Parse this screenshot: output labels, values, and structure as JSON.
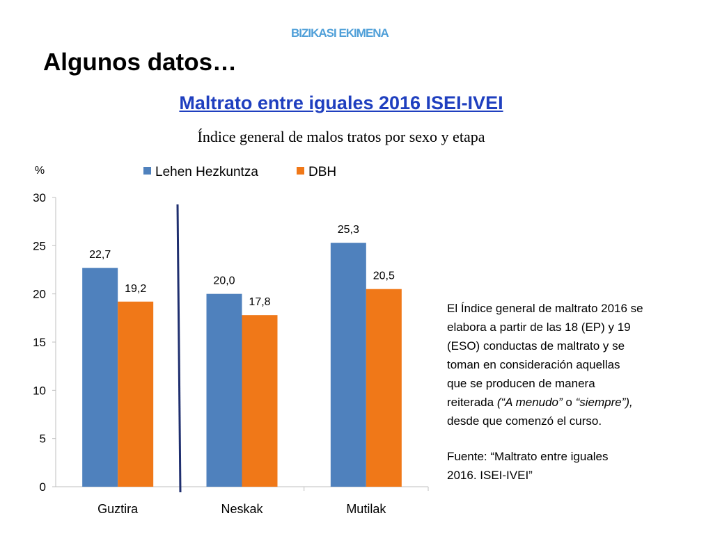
{
  "header": {
    "top_label": "BIZIKASI EKIMENA",
    "title": "Algunos datos…",
    "link_title": "Maltrato entre iguales 2016  ISEI-IVEI",
    "subtitle": "Índice general de malos tratos por sexo y etapa"
  },
  "chart_data": {
    "type": "bar",
    "title": "",
    "ylabel": "%",
    "xlabel": "",
    "categories": [
      "Guztira",
      "Neskak",
      "Mutilak"
    ],
    "series": [
      {
        "name": "Lehen Hezkuntza",
        "values": [
          22.7,
          20.0,
          25.3
        ],
        "labels": [
          "22,7",
          "20,0",
          "25,3"
        ],
        "color": "#4f81bd"
      },
      {
        "name": "DBH",
        "values": [
          19.2,
          17.8,
          20.5
        ],
        "labels": [
          "19,2",
          "17,8",
          "20,5"
        ],
        "color": "#f07818"
      }
    ],
    "ylim": [
      0,
      30
    ],
    "yticks": [
      0,
      5,
      10,
      15,
      20,
      25,
      30
    ],
    "grid": false,
    "legend": "top",
    "separator_color": "#1f2f6f"
  },
  "note": {
    "line1": "El Índice general de maltrato 2016 se",
    "line2": "elabora a partir de las 18 (EP) y 19",
    "line3": "(ESO) conductas de maltrato y se",
    "line4": "toman en consideración aquellas",
    "line5": "que se producen de manera",
    "line6_pre": "reiterada ",
    "line6_em1": "(“A menudo”",
    "line6_mid": " o ",
    "line6_em2": "“siempre”),",
    "line7": "desde que comenzó el curso.",
    "source1": "Fuente: “Maltrato entre iguales",
    "source2": "2016. ISEI-IVEI”"
  }
}
